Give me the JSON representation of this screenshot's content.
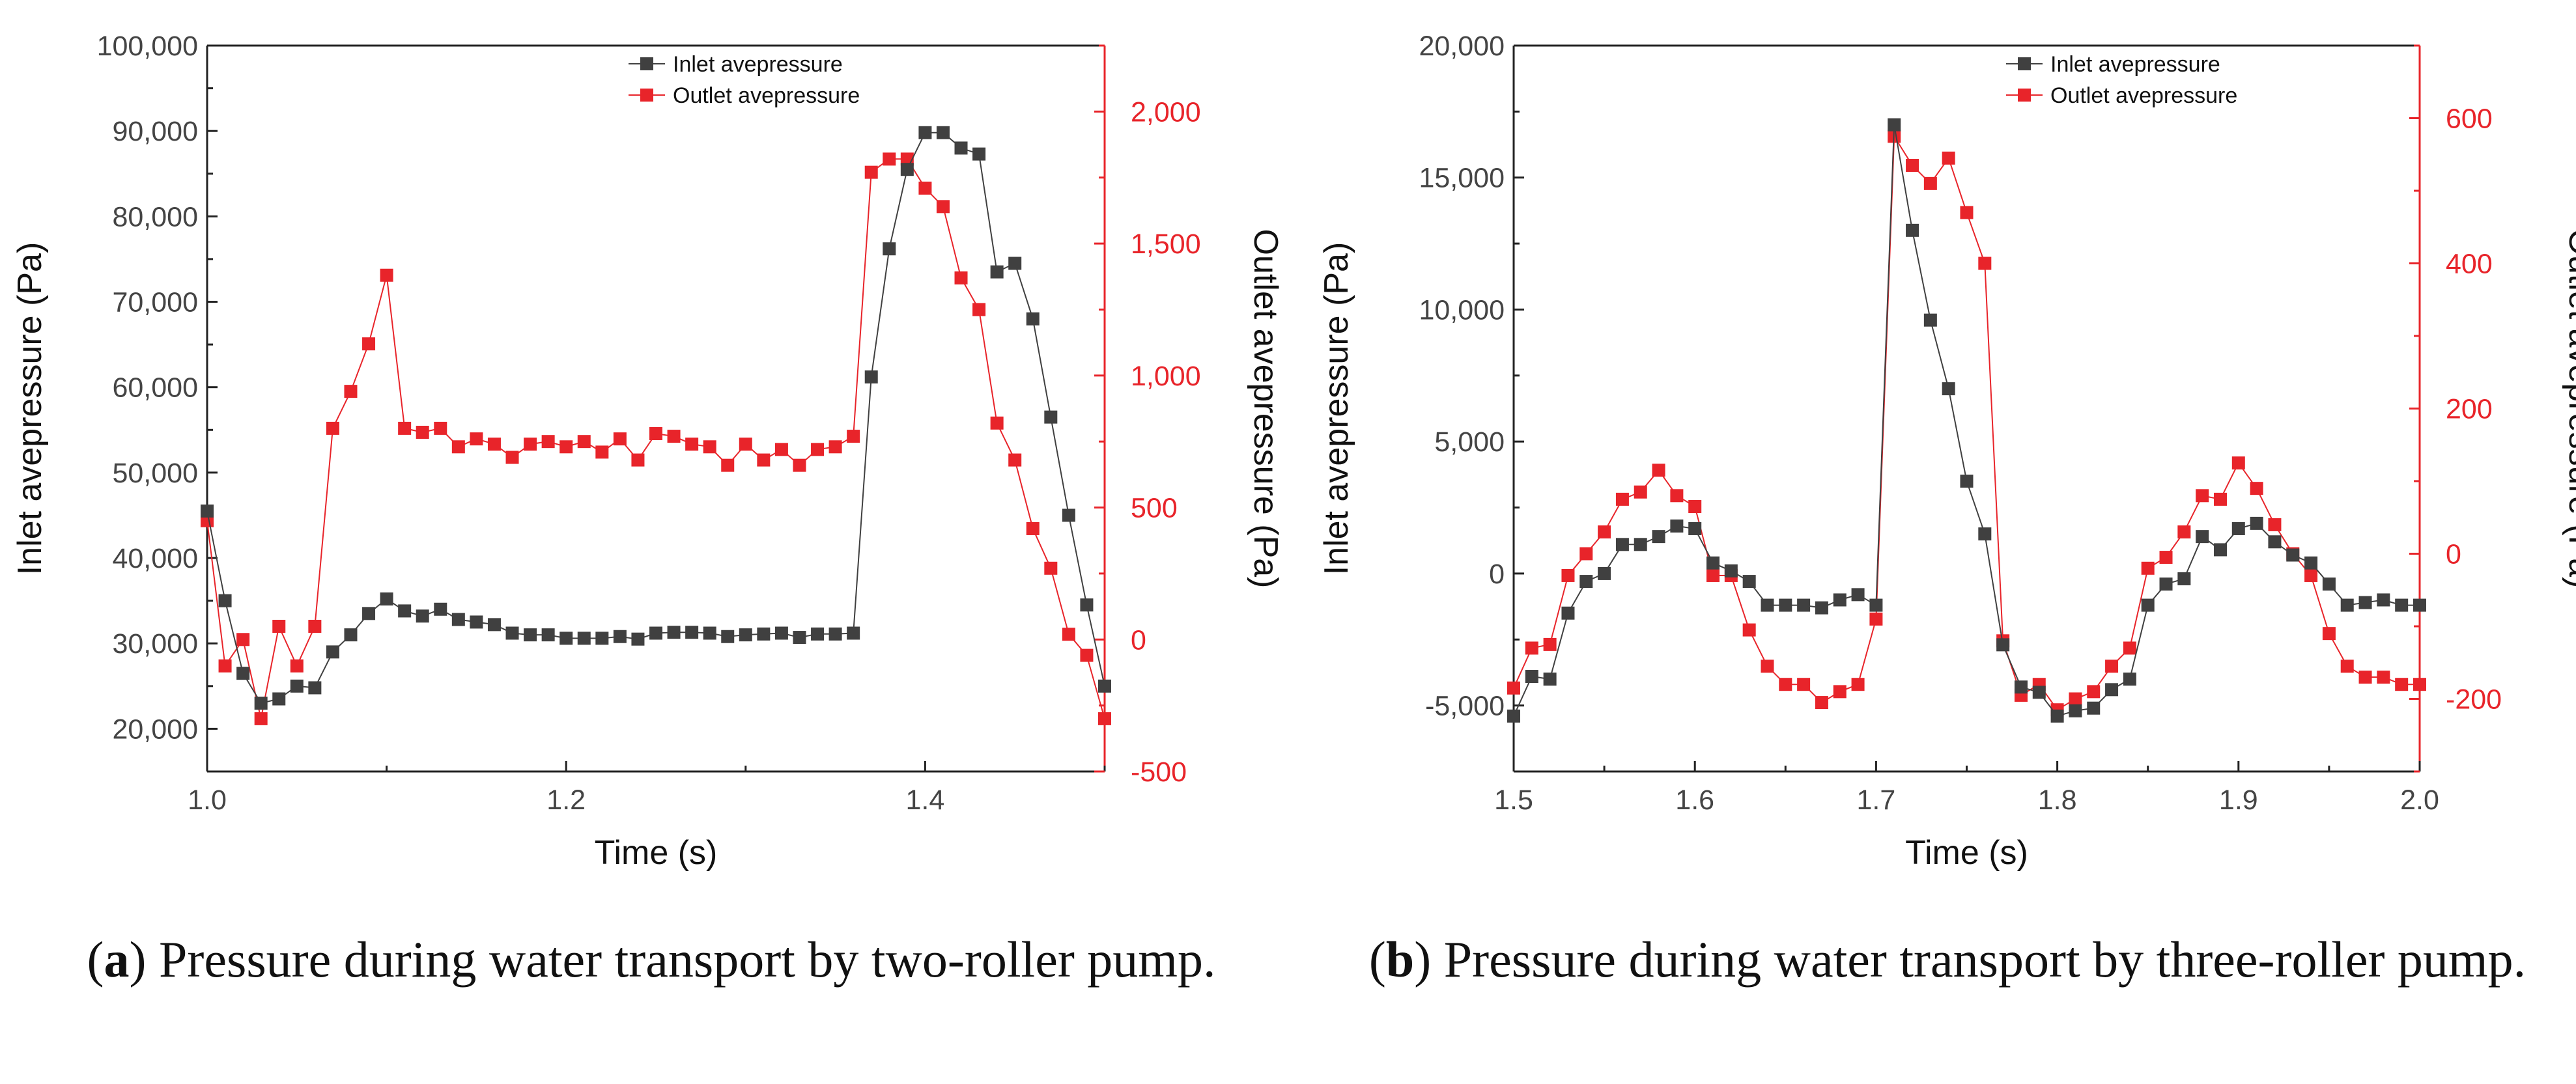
{
  "captions": [
    {
      "letter": "a",
      "text": "Pressure during water transport by two-roller pump."
    },
    {
      "letter": "b",
      "text": "Pressure during water transport by three-roller pump."
    }
  ],
  "colors": {
    "inlet": "#404040",
    "outlet": "#e8242a",
    "axis_right": "#e8242a",
    "axis": "#222222"
  },
  "chart_data": [
    {
      "type": "line",
      "title": "",
      "xlabel": "Time (s)",
      "ylabel": "Inlet avepressure (Pa)",
      "ylabel_right": "Outlet avepressure (Pa)",
      "xlim": [
        1.0,
        1.5
      ],
      "ylim": [
        15000,
        100000
      ],
      "ylim_right": [
        -500,
        2250
      ],
      "xticks": [
        1.0,
        1.2,
        1.4
      ],
      "xtick_labels": [
        "1.0",
        "1.2",
        "1.4"
      ],
      "yticks": [
        20000,
        30000,
        40000,
        50000,
        60000,
        70000,
        80000,
        90000,
        100000
      ],
      "ytick_labels": [
        "20,000",
        "30,000",
        "40,000",
        "50,000",
        "60,000",
        "70,000",
        "80,000",
        "90,000",
        "100,000"
      ],
      "yticks_right": [
        -500,
        0,
        500,
        1000,
        1500,
        2000
      ],
      "ytick_labels_right": [
        "-500",
        "0",
        "500",
        "1,000",
        "1,500",
        "2,000"
      ],
      "legend_position": "top-right",
      "series": [
        {
          "name": "Inlet avepressure",
          "axis": "left",
          "color": "#404040",
          "x": [
            1.0,
            1.01,
            1.02,
            1.03,
            1.04,
            1.05,
            1.06,
            1.07,
            1.08,
            1.09,
            1.1,
            1.11,
            1.12,
            1.13,
            1.14,
            1.15,
            1.16,
            1.17,
            1.18,
            1.19,
            1.2,
            1.21,
            1.22,
            1.23,
            1.24,
            1.25,
            1.26,
            1.27,
            1.28,
            1.29,
            1.3,
            1.31,
            1.32,
            1.33,
            1.34,
            1.35,
            1.36,
            1.37,
            1.38,
            1.39,
            1.4,
            1.41,
            1.42,
            1.43,
            1.44,
            1.45,
            1.46,
            1.47,
            1.48,
            1.49,
            1.5
          ],
          "y": [
            45500,
            35000,
            26500,
            23000,
            23500,
            25000,
            24800,
            29000,
            31000,
            33500,
            35200,
            33800,
            33200,
            34000,
            32800,
            32500,
            32200,
            31200,
            31000,
            31000,
            30600,
            30600,
            30600,
            30800,
            30500,
            31200,
            31300,
            31300,
            31200,
            30800,
            31000,
            31100,
            31200,
            30700,
            31100,
            31100,
            31200,
            61200,
            76200,
            85500,
            89800,
            89800,
            88000,
            87300,
            73500,
            74500,
            68000,
            56500,
            45000,
            34500,
            25000
          ]
        },
        {
          "name": "Outlet avepressure",
          "axis": "right",
          "color": "#e8242a",
          "x": [
            1.0,
            1.01,
            1.02,
            1.03,
            1.04,
            1.05,
            1.06,
            1.07,
            1.08,
            1.09,
            1.1,
            1.11,
            1.12,
            1.13,
            1.14,
            1.15,
            1.16,
            1.17,
            1.18,
            1.19,
            1.2,
            1.21,
            1.22,
            1.23,
            1.24,
            1.25,
            1.26,
            1.27,
            1.28,
            1.29,
            1.3,
            1.31,
            1.32,
            1.33,
            1.34,
            1.35,
            1.36,
            1.37,
            1.38,
            1.39,
            1.4,
            1.41,
            1.42,
            1.43,
            1.44,
            1.45,
            1.46,
            1.47,
            1.48,
            1.49,
            1.5
          ],
          "y": [
            450,
            -100,
            0,
            -300,
            50,
            -100,
            50,
            800,
            940,
            1120,
            1380,
            800,
            785,
            800,
            730,
            760,
            740,
            690,
            740,
            750,
            730,
            750,
            710,
            760,
            680,
            780,
            770,
            740,
            730,
            660,
            740,
            680,
            720,
            660,
            720,
            730,
            770,
            1770,
            1820,
            1820,
            1710,
            1640,
            1370,
            1250,
            820,
            680,
            420,
            270,
            20,
            -60,
            -300
          ]
        }
      ]
    },
    {
      "type": "line",
      "title": "",
      "xlabel": "Time (s)",
      "ylabel": "Inlet avepressure (Pa)",
      "ylabel_right": "Outlet avepressure (Pa)",
      "xlim": [
        1.5,
        2.0
      ],
      "ylim": [
        -7500,
        20000
      ],
      "ylim_right": [
        -300,
        700
      ],
      "xticks": [
        1.5,
        1.6,
        1.7,
        1.8,
        1.9,
        2.0
      ],
      "xtick_labels": [
        "1.5",
        "1.6",
        "1.7",
        "1.8",
        "1.9",
        "2.0"
      ],
      "yticks": [
        -5000,
        0,
        5000,
        10000,
        15000,
        20000
      ],
      "ytick_labels": [
        "-5,000",
        "0",
        "5,000",
        "10,000",
        "15,000",
        "20,000"
      ],
      "yticks_right": [
        -200,
        0,
        200,
        400,
        600
      ],
      "ytick_labels_right": [
        "-200",
        "0",
        "200",
        "400",
        "600"
      ],
      "legend_position": "top-right",
      "series": [
        {
          "name": "Inlet avepressure",
          "axis": "left",
          "color": "#404040",
          "x": [
            1.5,
            1.51,
            1.52,
            1.53,
            1.54,
            1.55,
            1.56,
            1.57,
            1.58,
            1.59,
            1.6,
            1.61,
            1.62,
            1.63,
            1.64,
            1.65,
            1.66,
            1.67,
            1.68,
            1.69,
            1.7,
            1.71,
            1.72,
            1.73,
            1.74,
            1.75,
            1.76,
            1.77,
            1.78,
            1.79,
            1.8,
            1.81,
            1.82,
            1.83,
            1.84,
            1.85,
            1.86,
            1.87,
            1.88,
            1.89,
            1.9,
            1.91,
            1.92,
            1.93,
            1.94,
            1.95,
            1.96,
            1.97,
            1.98,
            1.99,
            2.0
          ],
          "y": [
            -5400,
            -3900,
            -4000,
            -1500,
            -300,
            0,
            1100,
            1100,
            1400,
            1800,
            1700,
            400,
            100,
            -300,
            -1200,
            -1200,
            -1200,
            -1300,
            -1000,
            -800,
            -1200,
            17000,
            13000,
            9600,
            7000,
            3500,
            1500,
            -2700,
            -4300,
            -4500,
            -5400,
            -5200,
            -5100,
            -4400,
            -4000,
            -1200,
            -400,
            -200,
            1400,
            900,
            1700,
            1900,
            1200,
            700,
            400,
            -400,
            -1200,
            -1100,
            -1000,
            -1200,
            -1200
          ]
        },
        {
          "name": "Outlet avepressure",
          "axis": "right",
          "color": "#e8242a",
          "x": [
            1.5,
            1.51,
            1.52,
            1.53,
            1.54,
            1.55,
            1.56,
            1.57,
            1.58,
            1.59,
            1.6,
            1.61,
            1.62,
            1.63,
            1.64,
            1.65,
            1.66,
            1.67,
            1.68,
            1.69,
            1.7,
            1.71,
            1.72,
            1.73,
            1.74,
            1.75,
            1.76,
            1.77,
            1.78,
            1.79,
            1.8,
            1.81,
            1.82,
            1.83,
            1.84,
            1.85,
            1.86,
            1.87,
            1.88,
            1.89,
            1.9,
            1.91,
            1.92,
            1.93,
            1.94,
            1.95,
            1.96,
            1.97,
            1.98,
            1.99,
            2.0
          ],
          "y": [
            -185,
            -130,
            -125,
            -30,
            0,
            30,
            75,
            85,
            115,
            80,
            65,
            -30,
            -30,
            -105,
            -155,
            -180,
            -180,
            -205,
            -190,
            -180,
            -90,
            575,
            535,
            510,
            545,
            470,
            400,
            -120,
            -195,
            -180,
            -215,
            -200,
            -190,
            -155,
            -130,
            -20,
            -5,
            30,
            80,
            75,
            125,
            90,
            40,
            0,
            -30,
            -110,
            -155,
            -170,
            -170,
            -180,
            -180
          ]
        }
      ]
    }
  ]
}
